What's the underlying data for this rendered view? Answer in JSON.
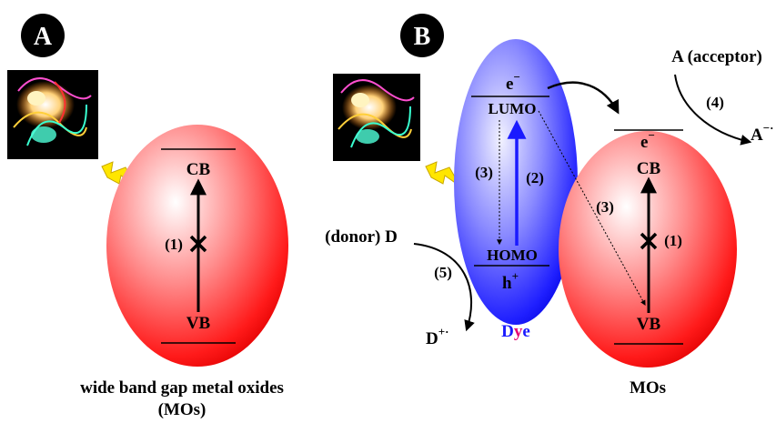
{
  "panel_a": {
    "badge": "A",
    "cb": "CB",
    "vb": "VB",
    "step1": "(1)",
    "caption_line1": "wide band gap metal oxides",
    "caption_line2": "(MOs)"
  },
  "panel_b": {
    "badge": "B",
    "dye": {
      "electron": "e",
      "electron_sup": "−",
      "lumo": "LUMO",
      "homo": "HOMO",
      "hole": "h",
      "hole_sup": "+",
      "step2": "(2)",
      "step3": "(3)",
      "label_d": "D",
      "label_y": "y",
      "label_e": "e"
    },
    "mo": {
      "electron": "e",
      "electron_sup": "−",
      "cb": "CB",
      "vb": "VB",
      "step1": "(1)",
      "step3": "(3)",
      "caption": "MOs"
    },
    "acceptor": {
      "label": "A (acceptor)",
      "step4": "(4)",
      "product": "A",
      "product_sup": "−·"
    },
    "donor": {
      "label": "(donor) D",
      "step5": "(5)",
      "product": "D",
      "product_sup": "+·"
    }
  },
  "colors": {
    "mo_red": "#ff1a1a",
    "dye_blue": "#1a1aff",
    "dye_magenta": "#e60073",
    "bolt_yellow": "#ffe600"
  },
  "icons": [
    "light-photo-image",
    "lightning-bolt-icon"
  ]
}
